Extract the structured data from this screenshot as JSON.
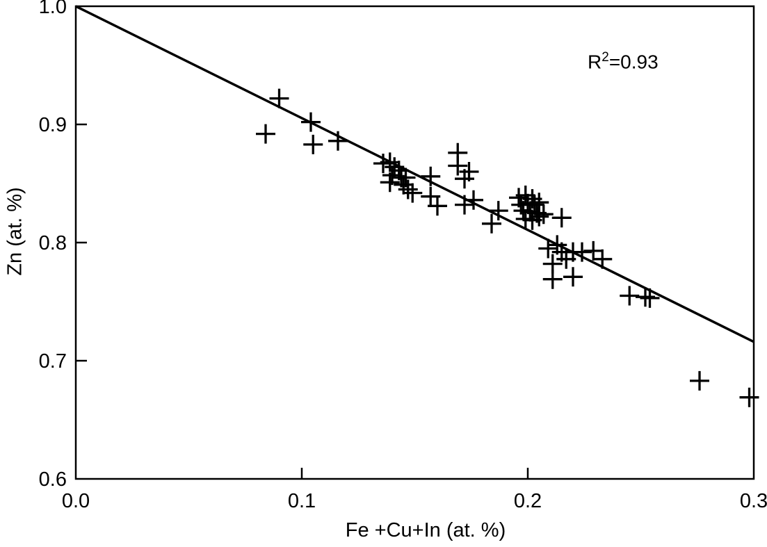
{
  "chart_data": {
    "type": "scatter",
    "title": "",
    "xlabel": "Fe +Cu+In (at. %)",
    "ylabel": "Zn (at. %)",
    "xlim": [
      0.0,
      0.3
    ],
    "ylim": [
      0.6,
      1.0
    ],
    "xticks": [
      0.0,
      0.1,
      0.2,
      0.3
    ],
    "yticks": [
      0.6,
      0.7,
      0.8,
      0.9,
      1.0
    ],
    "xtick_labels": [
      "0.0",
      "0.1",
      "0.2",
      "0.3"
    ],
    "ytick_labels": [
      "0.6",
      "0.7",
      "0.8",
      "0.9",
      "1.0"
    ],
    "grid": false,
    "legend": null,
    "marker": "plus",
    "color": "#000000",
    "background": "#ffffff",
    "r_squared": 0.93,
    "annotation": {
      "base": "R",
      "sup": "2",
      "rest": "=0.93"
    },
    "fit_line": {
      "x1": 0.0,
      "y1": 1.0,
      "x2": 0.3,
      "y2": 0.716
    },
    "points": [
      [
        0.084,
        0.892
      ],
      [
        0.09,
        0.922
      ],
      [
        0.104,
        0.902
      ],
      [
        0.105,
        0.883
      ],
      [
        0.116,
        0.886
      ],
      [
        0.136,
        0.867
      ],
      [
        0.139,
        0.868
      ],
      [
        0.141,
        0.864
      ],
      [
        0.143,
        0.861
      ],
      [
        0.14,
        0.857
      ],
      [
        0.144,
        0.855
      ],
      [
        0.146,
        0.855
      ],
      [
        0.139,
        0.851
      ],
      [
        0.145,
        0.849
      ],
      [
        0.147,
        0.845
      ],
      [
        0.149,
        0.842
      ],
      [
        0.157,
        0.856
      ],
      [
        0.157,
        0.839
      ],
      [
        0.16,
        0.831
      ],
      [
        0.169,
        0.876
      ],
      [
        0.169,
        0.865
      ],
      [
        0.174,
        0.86
      ],
      [
        0.172,
        0.854
      ],
      [
        0.172,
        0.832
      ],
      [
        0.176,
        0.836
      ],
      [
        0.184,
        0.816
      ],
      [
        0.187,
        0.827
      ],
      [
        0.196,
        0.838
      ],
      [
        0.199,
        0.84
      ],
      [
        0.202,
        0.837
      ],
      [
        0.197,
        0.832
      ],
      [
        0.2,
        0.833
      ],
      [
        0.203,
        0.832
      ],
      [
        0.205,
        0.834
      ],
      [
        0.198,
        0.827
      ],
      [
        0.201,
        0.826
      ],
      [
        0.204,
        0.825
      ],
      [
        0.199,
        0.82
      ],
      [
        0.202,
        0.819
      ],
      [
        0.205,
        0.822
      ],
      [
        0.207,
        0.824
      ],
      [
        0.215,
        0.821
      ],
      [
        0.209,
        0.795
      ],
      [
        0.213,
        0.798
      ],
      [
        0.215,
        0.792
      ],
      [
        0.217,
        0.786
      ],
      [
        0.211,
        0.782
      ],
      [
        0.22,
        0.792
      ],
      [
        0.224,
        0.792
      ],
      [
        0.229,
        0.793
      ],
      [
        0.233,
        0.786
      ],
      [
        0.211,
        0.769
      ],
      [
        0.22,
        0.771
      ],
      [
        0.245,
        0.755
      ],
      [
        0.252,
        0.754
      ],
      [
        0.254,
        0.753
      ],
      [
        0.276,
        0.683
      ],
      [
        0.298,
        0.669
      ]
    ]
  }
}
